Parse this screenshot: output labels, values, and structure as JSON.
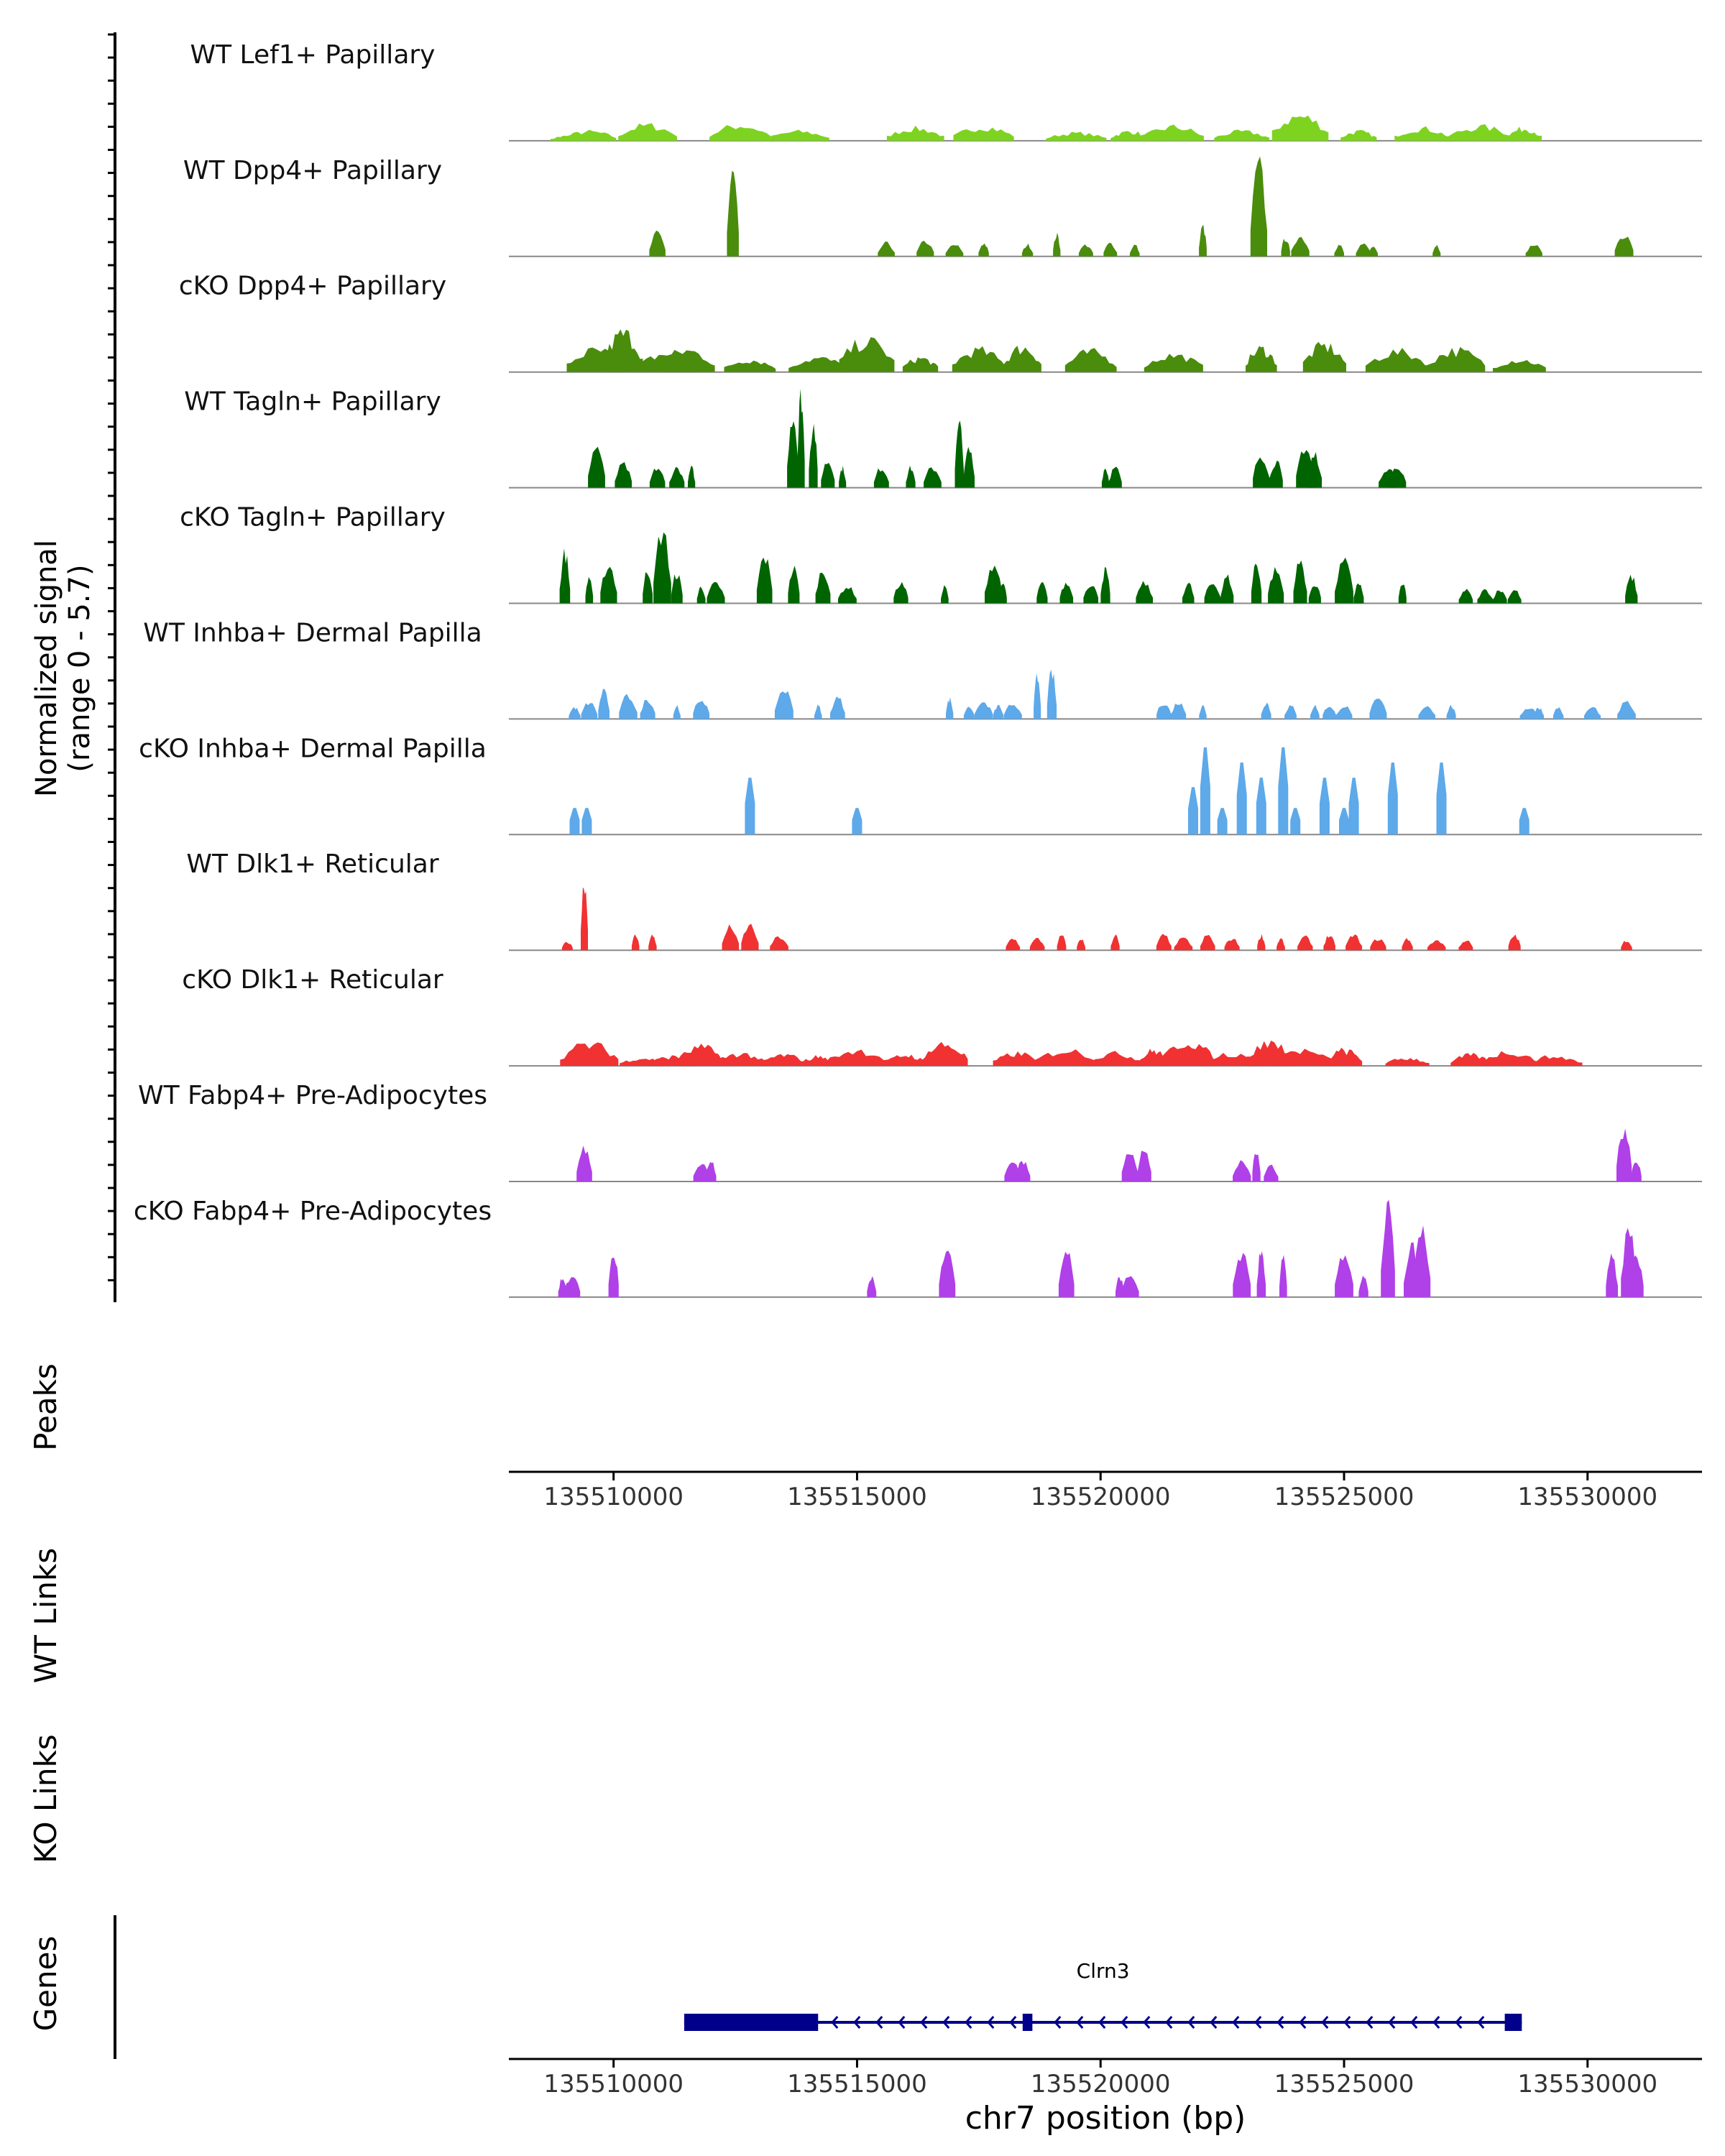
{
  "colors": {
    "lef1": "#7ED321",
    "dpp4": "#4A8C0C",
    "tagln": "#006400",
    "inhba": "#5DA9E9",
    "dlk1": "#F03232",
    "fabp4": "#B040E8",
    "gene": "#00008B",
    "baseline": "#888888",
    "axis": "#000000"
  },
  "labels": {
    "ylabel_line1": "Normalized signal",
    "ylabel_line2": "(range 0 - 5.7)",
    "peaks": "Peaks",
    "wt_links": "WT Links",
    "ko_links": "KO Links",
    "genes": "Genes",
    "xlabel": "chr7 position (bp)"
  },
  "chart_data": {
    "type": "area",
    "title": "",
    "xlabel": "chr7 position (bp)",
    "ylabel": "Normalized signal (range 0 - 5.7)",
    "xlim": [
      135507850,
      135532350
    ],
    "ylim": [
      0,
      5.7
    ],
    "x_ticks": [
      135510000,
      135515000,
      135520000,
      135525000,
      135530000
    ],
    "x_tick_labels": [
      "135510000",
      "135515000",
      "135520000",
      "135525000",
      "135530000"
    ],
    "tracks": [
      {
        "name": "WT Lef1+ Papillary",
        "color_key": "lef1",
        "density": "dense",
        "peaks": [
          [
            135509000,
            0.3
          ],
          [
            135509500,
            0.6
          ],
          [
            135510700,
            1.0
          ],
          [
            135512600,
            1.0
          ],
          [
            135513800,
            0.6
          ],
          [
            135516200,
            0.8
          ],
          [
            135517600,
            0.9
          ],
          [
            135519500,
            0.5
          ],
          [
            135520600,
            0.6
          ],
          [
            135521500,
            0.9
          ],
          [
            135522900,
            0.6
          ],
          [
            135524100,
            1.6
          ],
          [
            135525300,
            0.6
          ],
          [
            135526600,
            0.8
          ],
          [
            135527800,
            0.9
          ],
          [
            135528700,
            0.8
          ]
        ]
      },
      {
        "name": "WT Dpp4+ Papillary",
        "color_key": "dpp4",
        "density": "sparse",
        "peaks": [
          [
            135510900,
            1.4
          ],
          [
            135512450,
            5.0
          ],
          [
            135515600,
            0.8
          ],
          [
            135516400,
            0.9
          ],
          [
            135517000,
            0.7
          ],
          [
            135517600,
            0.8
          ],
          [
            135518500,
            0.7
          ],
          [
            135519100,
            1.3
          ],
          [
            135519700,
            0.7
          ],
          [
            135520200,
            0.8
          ],
          [
            135520700,
            0.7
          ],
          [
            135522100,
            1.8
          ],
          [
            135523250,
            5.5
          ],
          [
            135523800,
            1.1
          ],
          [
            135524100,
            1.2
          ],
          [
            135524900,
            0.7
          ],
          [
            135525400,
            0.7
          ],
          [
            135525600,
            0.6
          ],
          [
            135526900,
            0.7
          ],
          [
            135528900,
            0.7
          ],
          [
            135530750,
            1.3
          ]
        ]
      },
      {
        "name": "cKO Dpp4+ Papillary",
        "color_key": "dpp4",
        "density": "dense",
        "peaks": [
          [
            135509650,
            1.4
          ],
          [
            135510200,
            2.5
          ],
          [
            135511100,
            1.2
          ],
          [
            135511500,
            1.4
          ],
          [
            135512800,
            0.8
          ],
          [
            135514200,
            0.9
          ],
          [
            135515200,
            2.0
          ],
          [
            135516300,
            0.9
          ],
          [
            135517500,
            1.4
          ],
          [
            135518400,
            1.6
          ],
          [
            135519800,
            1.3
          ],
          [
            135521500,
            1.1
          ],
          [
            135523300,
            1.5
          ],
          [
            135524600,
            1.7
          ],
          [
            135526100,
            1.3
          ],
          [
            135527300,
            1.4
          ],
          [
            135528600,
            0.8
          ]
        ]
      },
      {
        "name": "WT Tagln+ Papillary",
        "color_key": "tagln",
        "density": "sparse",
        "peaks": [
          [
            135509650,
            2.5
          ],
          [
            135510200,
            1.4
          ],
          [
            135510900,
            1.2
          ],
          [
            135511300,
            1.2
          ],
          [
            135511600,
            1.2
          ],
          [
            135513680,
            4.5
          ],
          [
            135513850,
            5.6
          ],
          [
            135514100,
            3.8
          ],
          [
            135514400,
            1.6
          ],
          [
            135514700,
            1.2
          ],
          [
            135515500,
            1.2
          ],
          [
            135516100,
            1.2
          ],
          [
            135516550,
            1.2
          ],
          [
            135517100,
            3.8
          ],
          [
            135517300,
            2.3
          ],
          [
            135520100,
            1.2
          ],
          [
            135520300,
            1.2
          ],
          [
            135523300,
            2.0
          ],
          [
            135523600,
            1.6
          ],
          [
            135524200,
            2.5
          ],
          [
            135524400,
            2.0
          ],
          [
            135525900,
            1.2
          ],
          [
            135526100,
            1.2
          ]
        ]
      },
      {
        "name": "cKO Tagln+ Papillary",
        "color_key": "tagln",
        "density": "sparse",
        "peaks": [
          [
            135509000,
            3.0
          ],
          [
            135509500,
            1.6
          ],
          [
            135509900,
            2.3
          ],
          [
            135510700,
            2.0
          ],
          [
            135511000,
            4.3
          ],
          [
            135511300,
            1.8
          ],
          [
            135511800,
            1.0
          ],
          [
            135512100,
            1.2
          ],
          [
            135513100,
            2.8
          ],
          [
            135513700,
            2.1
          ],
          [
            135514300,
            2.0
          ],
          [
            135514800,
            1.0
          ],
          [
            135515900,
            1.2
          ],
          [
            135516800,
            1.0
          ],
          [
            135517800,
            2.4
          ],
          [
            135518000,
            1.2
          ],
          [
            135518800,
            1.2
          ],
          [
            135519300,
            1.2
          ],
          [
            135519800,
            1.2
          ],
          [
            135520100,
            2.0
          ],
          [
            135520900,
            1.2
          ],
          [
            135521800,
            1.2
          ],
          [
            135522300,
            1.2
          ],
          [
            135522600,
            1.6
          ],
          [
            135523200,
            2.5
          ],
          [
            135523600,
            2.0
          ],
          [
            135524100,
            2.5
          ],
          [
            135524400,
            1.2
          ],
          [
            135525000,
            2.5
          ],
          [
            135525300,
            1.2
          ],
          [
            135526200,
            1.2
          ],
          [
            135527500,
            0.8
          ],
          [
            135527900,
            0.8
          ],
          [
            135528200,
            0.8
          ],
          [
            135528500,
            0.8
          ],
          [
            135530900,
            1.6
          ]
        ]
      },
      {
        "name": "WT Inhba+ Dermal Papilla",
        "color_key": "inhba",
        "density": "sparse",
        "peaks": [
          [
            135509200,
            0.7
          ],
          [
            135509500,
            1.0
          ],
          [
            135509800,
            1.8
          ],
          [
            135510300,
            1.4
          ],
          [
            135510700,
            1.2
          ],
          [
            135511300,
            0.8
          ],
          [
            135511800,
            1.2
          ],
          [
            135513500,
            1.8
          ],
          [
            135514200,
            0.8
          ],
          [
            135514600,
            1.3
          ],
          [
            135516900,
            1.2
          ],
          [
            135517300,
            0.8
          ],
          [
            135517600,
            1.0
          ],
          [
            135517900,
            0.8
          ],
          [
            135518200,
            0.9
          ],
          [
            135518700,
            2.5
          ],
          [
            135519000,
            2.8
          ],
          [
            135521300,
            1.0
          ],
          [
            135521600,
            1.0
          ],
          [
            135522100,
            0.8
          ],
          [
            135523400,
            1.0
          ],
          [
            135523900,
            0.8
          ],
          [
            135524400,
            0.8
          ],
          [
            135524700,
            0.8
          ],
          [
            135525000,
            0.8
          ],
          [
            135525700,
            1.2
          ],
          [
            135526700,
            0.8
          ],
          [
            135527200,
            0.8
          ],
          [
            135528800,
            0.7
          ],
          [
            135529000,
            0.7
          ],
          [
            135529400,
            0.7
          ],
          [
            135530100,
            0.7
          ],
          [
            135530800,
            1.0
          ]
        ]
      },
      {
        "name": "cKO Inhba+ Dermal Papilla",
        "color_key": "inhba",
        "density": "blocky",
        "peaks": [
          [
            135509200,
            1.4
          ],
          [
            135509450,
            1.4
          ],
          [
            135512800,
            3.0
          ],
          [
            135515000,
            1.4
          ],
          [
            135521900,
            2.5
          ],
          [
            135522150,
            4.6
          ],
          [
            135522500,
            1.4
          ],
          [
            135522900,
            3.8
          ],
          [
            135523300,
            3.0
          ],
          [
            135523750,
            4.6
          ],
          [
            135524000,
            1.4
          ],
          [
            135524600,
            3.0
          ],
          [
            135525000,
            1.4
          ],
          [
            135525200,
            3.0
          ],
          [
            135526000,
            3.8
          ],
          [
            135527000,
            3.8
          ],
          [
            135528700,
            1.4
          ]
        ]
      },
      {
        "name": "WT Dlk1+ Reticular",
        "color_key": "dlk1",
        "density": "sparse",
        "peaks": [
          [
            135509050,
            0.5
          ],
          [
            135509400,
            4.2
          ],
          [
            135510450,
            0.9
          ],
          [
            135510800,
            0.9
          ],
          [
            135512400,
            1.4
          ],
          [
            135512800,
            1.5
          ],
          [
            135513400,
            0.8
          ],
          [
            135518200,
            0.7
          ],
          [
            135518700,
            0.7
          ],
          [
            135519200,
            0.9
          ],
          [
            135519600,
            0.7
          ],
          [
            135520300,
            0.9
          ],
          [
            135521300,
            0.9
          ],
          [
            135521700,
            0.7
          ],
          [
            135522200,
            0.9
          ],
          [
            135522700,
            0.7
          ],
          [
            135523300,
            0.9
          ],
          [
            135523700,
            0.7
          ],
          [
            135524200,
            0.8
          ],
          [
            135524700,
            0.9
          ],
          [
            135525200,
            0.9
          ],
          [
            135525700,
            0.7
          ],
          [
            135526300,
            0.7
          ],
          [
            135526900,
            0.6
          ],
          [
            135527500,
            0.6
          ],
          [
            135528500,
            0.9
          ],
          [
            135530800,
            0.6
          ]
        ]
      },
      {
        "name": "cKO Dlk1+ Reticular",
        "color_key": "dlk1",
        "density": "dense",
        "peaks": [
          [
            135509500,
            1.4
          ],
          [
            135510600,
            0.5
          ],
          [
            135511200,
            0.6
          ],
          [
            135511800,
            1.2
          ],
          [
            135512600,
            0.8
          ],
          [
            135513500,
            0.7
          ],
          [
            135514200,
            0.6
          ],
          [
            135515000,
            1.0
          ],
          [
            135516000,
            0.7
          ],
          [
            135516800,
            1.4
          ],
          [
            135518300,
            0.8
          ],
          [
            135519300,
            1.0
          ],
          [
            135520300,
            0.8
          ],
          [
            135521100,
            1.0
          ],
          [
            135521800,
            1.6
          ],
          [
            135522700,
            0.8
          ],
          [
            135523500,
            1.5
          ],
          [
            135524100,
            1.0
          ],
          [
            135525000,
            1.0
          ],
          [
            135526300,
            0.5
          ],
          [
            135527600,
            0.7
          ],
          [
            135528400,
            0.9
          ],
          [
            135529300,
            0.6
          ]
        ]
      },
      {
        "name": "WT Fabp4+ Pre-Adipocytes",
        "color_key": "fabp4",
        "density": "sparse",
        "peaks": [
          [
            135509400,
            2.0
          ],
          [
            135511800,
            1.2
          ],
          [
            135512000,
            1.2
          ],
          [
            135518200,
            1.2
          ],
          [
            135518400,
            1.2
          ],
          [
            135520600,
            2.0
          ],
          [
            135520900,
            2.0
          ],
          [
            135522900,
            1.2
          ],
          [
            135523200,
            2.0
          ],
          [
            135523500,
            1.0
          ],
          [
            135530750,
            3.2
          ],
          [
            135531000,
            1.2
          ]
        ]
      },
      {
        "name": "cKO Fabp4+ Pre-Adipocytes",
        "color_key": "fabp4",
        "density": "sparse",
        "peaks": [
          [
            135508950,
            1.2
          ],
          [
            135509150,
            1.2
          ],
          [
            135510000,
            2.7
          ],
          [
            135515300,
            1.2
          ],
          [
            135516850,
            2.7
          ],
          [
            135519300,
            2.7
          ],
          [
            135520400,
            1.2
          ],
          [
            135520600,
            1.2
          ],
          [
            135522900,
            2.7
          ],
          [
            135523300,
            2.7
          ],
          [
            135523750,
            2.3
          ],
          [
            135525000,
            2.7
          ],
          [
            135525400,
            1.2
          ],
          [
            135525900,
            5.6
          ],
          [
            135526400,
            3.0
          ],
          [
            135526600,
            4.0
          ],
          [
            135530500,
            2.4
          ],
          [
            135530850,
            4.0
          ],
          [
            135531000,
            2.4
          ]
        ]
      }
    ],
    "gene": {
      "name": "Clrn3",
      "strand": "-",
      "start": 135511450,
      "end": 135528650,
      "exons": [
        [
          135511450,
          135514200
        ],
        [
          135518400,
          135518600
        ],
        [
          135528300,
          135528650
        ]
      ]
    }
  }
}
